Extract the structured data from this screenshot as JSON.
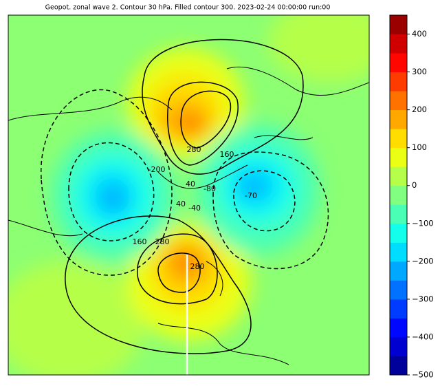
{
  "title": "Geopot. zonal wave 2. Contour 30 hPa. Filled contour 300. 2023-02-24 00:00:00 run:00",
  "colorbar": {
    "range": [
      -500,
      450
    ],
    "levels": [
      -500,
      -450,
      -400,
      -350,
      -300,
      -250,
      -200,
      -150,
      -100,
      -50,
      0,
      50,
      100,
      150,
      200,
      250,
      300,
      350,
      400,
      450
    ],
    "colors": [
      "#00009a",
      "#0000d0",
      "#0007ff",
      "#003cff",
      "#0072ff",
      "#00a8ff",
      "#00ddff",
      "#14ffeb",
      "#4affb5",
      "#80ff80",
      "#b5ff4a",
      "#ebff14",
      "#ffdd00",
      "#ffa800",
      "#ff7200",
      "#ff3c00",
      "#ff0700",
      "#d00000",
      "#9a0000"
    ],
    "ticks": [
      {
        "value": -500,
        "label": "−500"
      },
      {
        "value": -400,
        "label": "−400"
      },
      {
        "value": -300,
        "label": "−300"
      },
      {
        "value": -200,
        "label": "−200"
      },
      {
        "value": -100,
        "label": "−100"
      },
      0,
      100,
      200,
      300,
      400
    ]
  },
  "contour_labels": [
    "280",
    "160",
    "40",
    "-80",
    "40",
    "-40",
    "160",
    "280",
    "280",
    "-200",
    "-70"
  ]
}
